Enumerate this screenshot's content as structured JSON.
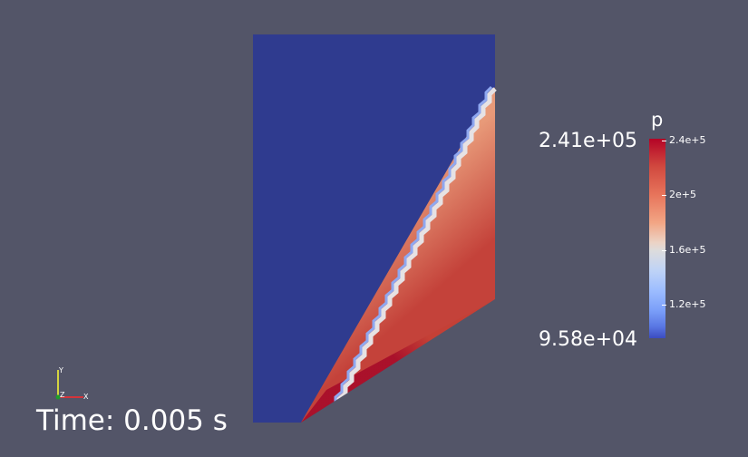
{
  "colormap": {
    "title": "p",
    "range_max_label": "2.41e+05",
    "range_min_label": "9.58e+04",
    "range": [
      95800,
      241000
    ],
    "ticks": [
      {
        "label": "2.4e+5",
        "value": 240000
      },
      {
        "label": "2e+5",
        "value": 200000
      },
      {
        "label": "1.6e+5",
        "value": 160000
      },
      {
        "label": "1.2e+5",
        "value": 120000
      }
    ]
  },
  "annotation": {
    "time_text": "Time: 0.005 s"
  },
  "orientation_axes": {
    "y": "Y",
    "z": "Z",
    "x": "X"
  },
  "colors": {
    "background": "#535568",
    "low": "#3b4cc0",
    "mid": "#dddcdc",
    "high": "#b40426",
    "x_axis": "#ff2a2a",
    "y_axis": "#ffff33",
    "z_axis": "#1e9e2a"
  }
}
